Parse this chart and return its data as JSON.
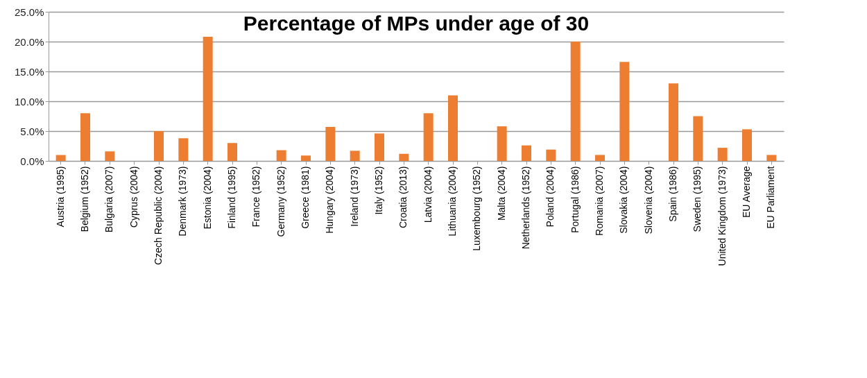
{
  "chart_data": {
    "type": "bar",
    "title": "Percentage of MPs under age of 30",
    "categories": [
      "Austria (1995)",
      "Belgium (1952)",
      "Bulgaria (2007)",
      "Cyprus (2004)",
      "Czech Republic (2004)",
      "Denmark (1973)",
      "Estonia (2004)",
      "Finland (1995)",
      "France (1952)",
      "Germany (1952)",
      "Greece (1981)",
      "Hungary (2004)",
      "Ireland (1973)",
      "Italy (1952)",
      "Croatia (2013)",
      "Latvia (2004)",
      "Lithuania (2004)",
      "Luxembourg (1952)",
      "Malta (2004)",
      "Netherlands (1952)",
      "Poland (2004)",
      "Portugal (1986)",
      "Romania (2007)",
      "Slovakia (2004)",
      "Slovenia (2004)",
      "Spain (1986)",
      "Sweden (1995)",
      "United Kingdom (1973)",
      "EU Average",
      "EU Parliament"
    ],
    "values": [
      1.0,
      8.0,
      1.6,
      0,
      5.0,
      3.8,
      20.8,
      3.0,
      0,
      1.8,
      0.9,
      5.7,
      1.7,
      4.6,
      1.2,
      8.0,
      11.0,
      0,
      5.8,
      2.6,
      1.9,
      20.0,
      1.0,
      16.6,
      0,
      13.0,
      7.5,
      2.2,
      5.3,
      1.0
    ],
    "color": "#ed7d31",
    "ylim": [
      0,
      25
    ],
    "yticks": [
      {
        "value": 0,
        "label": "0.0%"
      },
      {
        "value": 5,
        "label": "5.0%"
      },
      {
        "value": 10,
        "label": "10.0%"
      },
      {
        "value": 15,
        "label": "15.0%"
      },
      {
        "value": 20,
        "label": "20.0%"
      },
      {
        "value": 25,
        "label": "25.0%"
      }
    ],
    "grid": "y"
  }
}
